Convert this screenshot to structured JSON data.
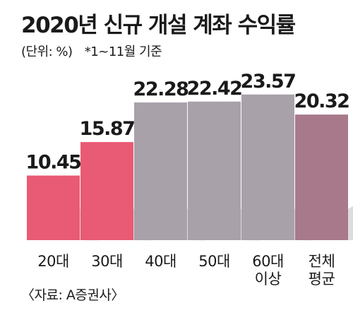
{
  "header": {
    "title": "2020년 신규 개설 계좌 수익률",
    "unit": "(단위: %)",
    "note": "*1~11월 기준"
  },
  "footer": {
    "source": "〈자료: A증권사〉"
  },
  "chart_data": {
    "type": "bar",
    "categories": [
      [
        "20대"
      ],
      [
        "30대"
      ],
      [
        "40대"
      ],
      [
        "50대"
      ],
      [
        "60대",
        "이상"
      ],
      [
        "전체",
        "평균"
      ]
    ],
    "values": [
      10.45,
      15.87,
      22.28,
      22.42,
      23.57,
      20.32
    ],
    "value_labels": [
      "10.45",
      "15.87",
      "22.28",
      "22.42",
      "23.57",
      "20.32"
    ],
    "colors": [
      "#e95a74",
      "#e95a74",
      "#a8a1aa",
      "#a8a1aa",
      "#a8a1aa",
      "#a8798a"
    ],
    "shadow_color": "#dcdcdc",
    "ylim": [
      0,
      24
    ],
    "grid": false,
    "legend": "none",
    "title": "2020년 신규 개설 계좌 수익률",
    "xlabel": "",
    "ylabel": ""
  }
}
